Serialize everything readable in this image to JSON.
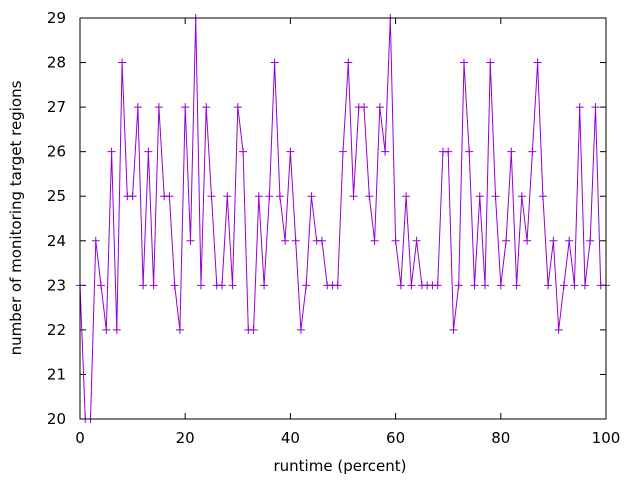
{
  "chart_data": {
    "type": "line",
    "title": "",
    "xlabel": "runtime (percent)",
    "ylabel": "number of monitoring target regions",
    "xlim": [
      0,
      100
    ],
    "ylim": [
      20,
      29
    ],
    "xticks": [
      0,
      20,
      40,
      60,
      80,
      100
    ],
    "yticks": [
      20,
      21,
      22,
      23,
      24,
      25,
      26,
      27,
      28,
      29
    ],
    "grid": false,
    "line_color": "#9400d3",
    "marker": "plus",
    "series": [
      {
        "name": "",
        "x": [
          0,
          1,
          2,
          3,
          4,
          5,
          6,
          7,
          8,
          9,
          10,
          11,
          12,
          13,
          14,
          15,
          16,
          17,
          18,
          19,
          20,
          21,
          22,
          23,
          24,
          25,
          26,
          27,
          28,
          29,
          30,
          31,
          32,
          33,
          34,
          35,
          36,
          37,
          38,
          39,
          40,
          41,
          42,
          43,
          44,
          45,
          46,
          47,
          48,
          49,
          50,
          51,
          52,
          53,
          54,
          55,
          56,
          57,
          58,
          59,
          60,
          61,
          62,
          63,
          64,
          65,
          66,
          67,
          68,
          69,
          70,
          71,
          72,
          73,
          74,
          75,
          76,
          77,
          78,
          79,
          80,
          81,
          82,
          83,
          84,
          85,
          86,
          87,
          88,
          89,
          90,
          91,
          92,
          93,
          94,
          95,
          96,
          97,
          98,
          99,
          100
        ],
        "values": [
          23,
          20,
          20,
          24,
          23,
          22,
          26,
          22,
          28,
          25,
          25,
          27,
          23,
          26,
          23,
          27,
          25,
          25,
          23,
          22,
          27,
          24,
          29,
          23,
          27,
          25,
          23,
          23,
          25,
          23,
          27,
          26,
          22,
          22,
          25,
          23,
          25,
          28,
          25,
          24,
          26,
          24,
          22,
          23,
          25,
          24,
          24,
          23,
          23,
          23,
          26,
          28,
          25,
          27,
          27,
          25,
          24,
          27,
          26,
          29,
          24,
          23,
          25,
          23,
          24,
          23,
          23,
          23,
          23,
          26,
          26,
          22,
          23,
          28,
          26,
          23,
          25,
          23,
          28,
          25,
          23,
          24,
          26,
          23,
          25,
          24,
          26,
          28,
          25,
          23,
          24,
          22,
          23,
          24,
          23,
          27,
          23,
          24,
          27,
          23,
          23
        ]
      }
    ]
  }
}
